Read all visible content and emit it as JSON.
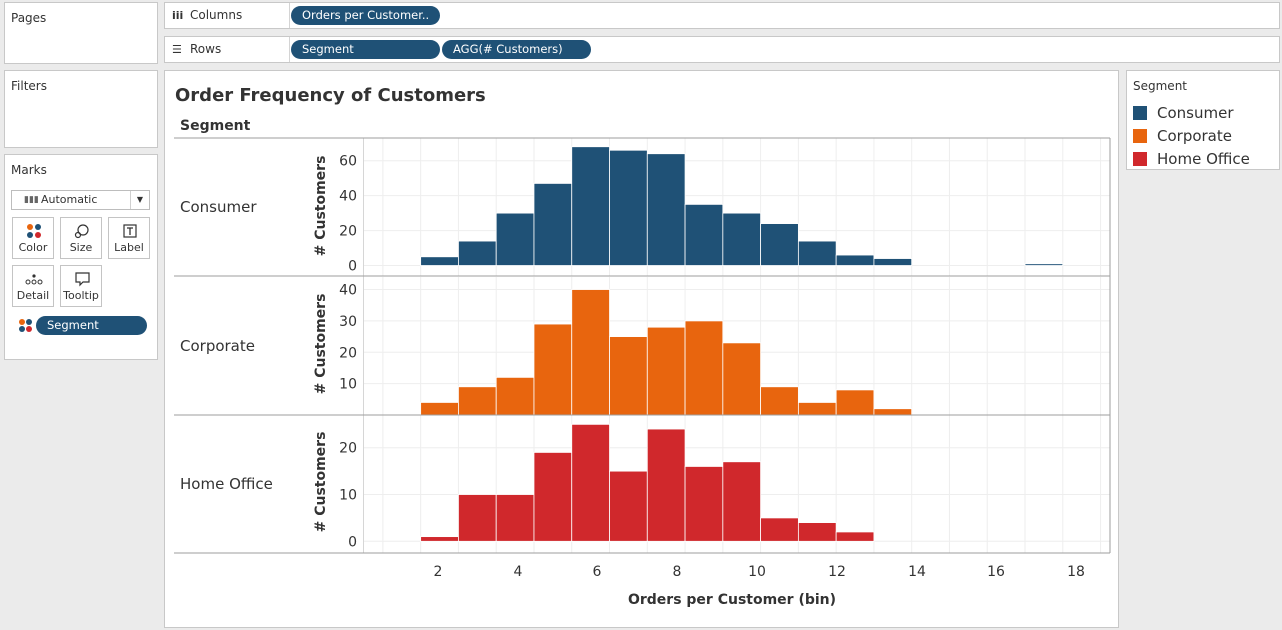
{
  "pages": {
    "title": "Pages"
  },
  "filters": {
    "title": "Filters"
  },
  "columns_shelf": {
    "label": "Columns",
    "pill": "Orders per Customer.."
  },
  "rows_shelf": {
    "label": "Rows",
    "pills": [
      "Segment",
      "AGG(# Customers)"
    ]
  },
  "marks": {
    "title": "Marks",
    "type": "Automatic",
    "buttons": [
      "Color",
      "Size",
      "Label",
      "Detail",
      "Tooltip"
    ],
    "pill": "Segment"
  },
  "view": {
    "title": "Order Frequency of Customers",
    "row_header": "Segment",
    "segments": [
      "Consumer",
      "Corporate",
      "Home Office"
    ],
    "y_title": "# Customers",
    "x_title": "Orders per Customer (bin)",
    "x_ticks": [
      "2",
      "4",
      "6",
      "8",
      "10",
      "12",
      "14",
      "16",
      "18"
    ]
  },
  "legend": {
    "title": "Segment",
    "items": [
      {
        "label": "Consumer",
        "color": "#1f5176"
      },
      {
        "label": "Corporate",
        "color": "#e8650e"
      },
      {
        "label": "Home Office",
        "color": "#d0282c"
      }
    ]
  },
  "chart_data": {
    "type": "bar",
    "title": "Order Frequency of Customers",
    "xlabel": "Orders per Customer (bin)",
    "ylabel": "# Customers",
    "bin_start": [
      1,
      2,
      3,
      4,
      5,
      6,
      7,
      8,
      9,
      10,
      11,
      12,
      13,
      14,
      15,
      16,
      17
    ],
    "xlim": [
      -0.5,
      19.25
    ],
    "grid": true,
    "legend_position": "right",
    "series": [
      {
        "name": "Consumer",
        "color": "#1f5176",
        "ylim": [
          -6,
          73
        ],
        "ticks": [
          0,
          20,
          40,
          60
        ],
        "values": [
          5,
          14,
          30,
          47,
          68,
          66,
          64,
          35,
          30,
          24,
          14,
          6,
          4,
          0,
          0,
          0,
          1
        ]
      },
      {
        "name": "Corporate",
        "color": "#e8650e",
        "ylim": [
          0,
          44
        ],
        "ticks": [
          10,
          20,
          30,
          40
        ],
        "values": [
          4,
          9,
          12,
          29,
          40,
          25,
          28,
          30,
          23,
          9,
          4,
          8,
          2,
          0,
          0,
          0,
          0
        ]
      },
      {
        "name": "Home Office",
        "color": "#d0282c",
        "ylim": [
          -2.5,
          27
        ],
        "ticks": [
          0,
          10,
          20
        ],
        "values": [
          1,
          10,
          10,
          19,
          25,
          15,
          24,
          16,
          17,
          5,
          4,
          2,
          0,
          0,
          0,
          0,
          0
        ]
      }
    ]
  }
}
